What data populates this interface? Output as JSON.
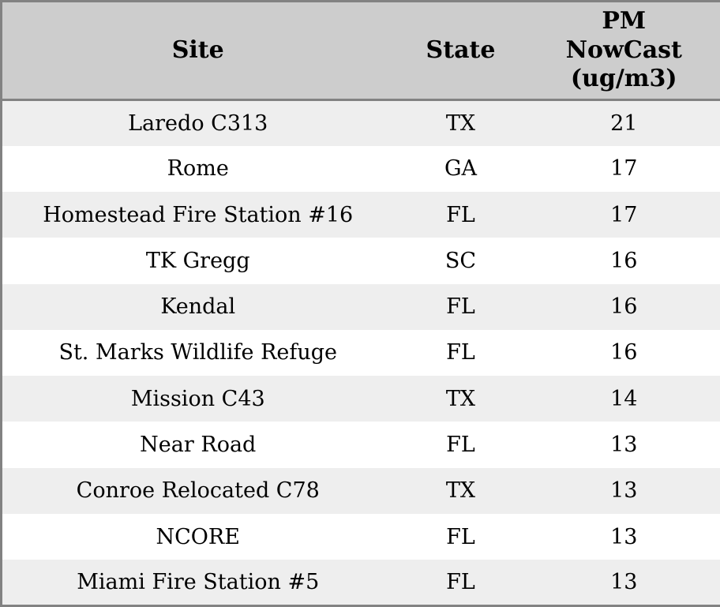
{
  "chart_data": {
    "type": "table",
    "columns": [
      "Site",
      "State",
      "PM NowCast (ug/m3)"
    ],
    "rows": [
      [
        "Laredo C313",
        "TX",
        21
      ],
      [
        "Rome",
        "GA",
        17
      ],
      [
        "Homestead Fire Station #16",
        "FL",
        17
      ],
      [
        "TK Gregg",
        "SC",
        16
      ],
      [
        "Kendal",
        "FL",
        16
      ],
      [
        "St. Marks Wildlife Refuge",
        "FL",
        16
      ],
      [
        "Mission C43",
        "TX",
        14
      ],
      [
        "Near Road",
        "FL",
        13
      ],
      [
        "Conroe Relocated C78",
        "TX",
        13
      ],
      [
        "NCORE",
        "FL",
        13
      ],
      [
        "Miami Fire Station #5",
        "FL",
        13
      ]
    ],
    "layout": {
      "header_lines_pm_column": "wraps to three lines: PM / NowCast / (ug/m3)",
      "row_striping": "odd rows shaded"
    }
  },
  "colors": {
    "header_bg": "#cdcdcd",
    "row_alt_bg": "#eeeeee",
    "row_bg": "#ffffff",
    "border": "#828282",
    "text": "#000000"
  }
}
